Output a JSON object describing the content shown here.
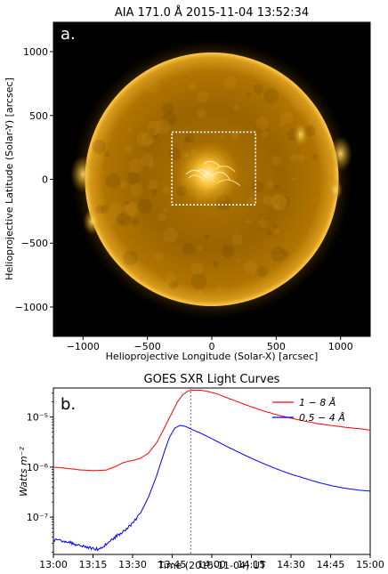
{
  "chart_data": [
    {
      "panel_label": "a.",
      "type": "image",
      "title": "AIA 171.0 Å 2015-11-04 13:52:34",
      "xlabel": "Helioprojective Longitude (Solar-X) [arcsec]",
      "ylabel": "Helioprojective Latitude (Solar-Y) [arcsec]",
      "xlim": [
        -1230,
        1230
      ],
      "ylim": [
        -1230,
        1230
      ],
      "xticks": [
        -1000,
        -500,
        0,
        500,
        1000
      ],
      "yticks": [
        -1000,
        -500,
        0,
        500,
        1000
      ],
      "xtick_labels": [
        "−1000",
        "−500",
        "0",
        "500",
        "1000"
      ],
      "ytick_labels": [
        "−1000",
        "−500",
        "0",
        "500",
        "1000"
      ],
      "solar_radius_arcsec": 985,
      "colormap": "sdoaia171",
      "box": {
        "x": [
          -310,
          340
        ],
        "y": [
          -200,
          370
        ],
        "style": "dotted",
        "color": "#ffffff"
      }
    },
    {
      "panel_label": "b.",
      "type": "line",
      "title": "GOES SXR Light Curves",
      "xlabel": "Time (2015-11-04) UT",
      "ylabel": "Watts m⁻²",
      "yscale": "log",
      "xlim": [
        "13:00",
        "15:00"
      ],
      "ylim": [
        1.8e-08,
        3.8e-05
      ],
      "xtick_labels": [
        "13:00",
        "13:15",
        "13:30",
        "13:45",
        "14:00",
        "14:15",
        "14:30",
        "14:45",
        "15:00"
      ],
      "ytick_labels": [
        "10⁻⁷",
        "10⁻⁶",
        "10⁻⁵"
      ],
      "vline": "13:52",
      "legend_position": "top-right",
      "series": [
        {
          "name": "1 − 8 Å",
          "color": "#ff0000",
          "x": [
            "13:00",
            "13:05",
            "13:10",
            "13:15",
            "13:20",
            "13:24",
            "13:26",
            "13:28",
            "13:30",
            "13:33",
            "13:36",
            "13:39",
            "13:42",
            "13:45",
            "13:47",
            "13:49",
            "13:51",
            "13:53",
            "13:55",
            "13:58",
            "14:02",
            "14:06",
            "14:10",
            "14:15",
            "14:20",
            "14:25",
            "14:30",
            "14:35",
            "14:40",
            "14:45",
            "14:50",
            "14:55",
            "15:00"
          ],
          "y": [
            1e-06,
            9.5e-07,
            8.8e-07,
            8.5e-07,
            8.7e-07,
            1.05e-06,
            1.2e-06,
            1.3e-06,
            1.35e-06,
            1.5e-06,
            1.9e-06,
            3e-06,
            6e-06,
            1.25e-05,
            2e-05,
            2.8e-05,
            3.3e-05,
            3.45e-05,
            3.45e-05,
            3.3e-05,
            2.9e-05,
            2.4e-05,
            2e-05,
            1.6e-05,
            1.3e-05,
            1.1e-05,
            9.5e-06,
            8.3e-06,
            7.4e-06,
            6.8e-06,
            6.3e-06,
            5.9e-06,
            5.5e-06
          ]
        },
        {
          "name": "0.5 − 4 Å",
          "color": "#0000ff",
          "x": [
            "13:00",
            "13:05",
            "13:08",
            "13:11",
            "13:14",
            "13:17",
            "13:19",
            "13:21",
            "13:24",
            "13:27",
            "13:30",
            "13:33",
            "13:36",
            "13:39",
            "13:42",
            "13:44",
            "13:46",
            "13:48",
            "13:50",
            "13:52",
            "13:56",
            "14:00",
            "14:05",
            "14:10",
            "14:15",
            "14:20",
            "14:25",
            "14:30",
            "14:35",
            "14:40",
            "14:45",
            "14:50",
            "14:55",
            "15:00"
          ],
          "y": [
            3.5e-08,
            3.3e-08,
            2.9e-08,
            2.7e-08,
            2.4e-08,
            2.3e-08,
            2.6e-08,
            3.2e-08,
            4.2e-08,
            5.5e-08,
            7.5e-08,
            1.2e-07,
            2.5e-07,
            6.5e-07,
            2e-06,
            4e-06,
            6e-06,
            6.8e-06,
            6.5e-06,
            5.8e-06,
            4.7e-06,
            3.7e-06,
            2.7e-06,
            2e-06,
            1.5e-06,
            1.15e-06,
            9e-07,
            7.2e-07,
            6e-07,
            5e-07,
            4.3e-07,
            3.8e-07,
            3.5e-07,
            3.3e-07
          ]
        }
      ]
    }
  ]
}
